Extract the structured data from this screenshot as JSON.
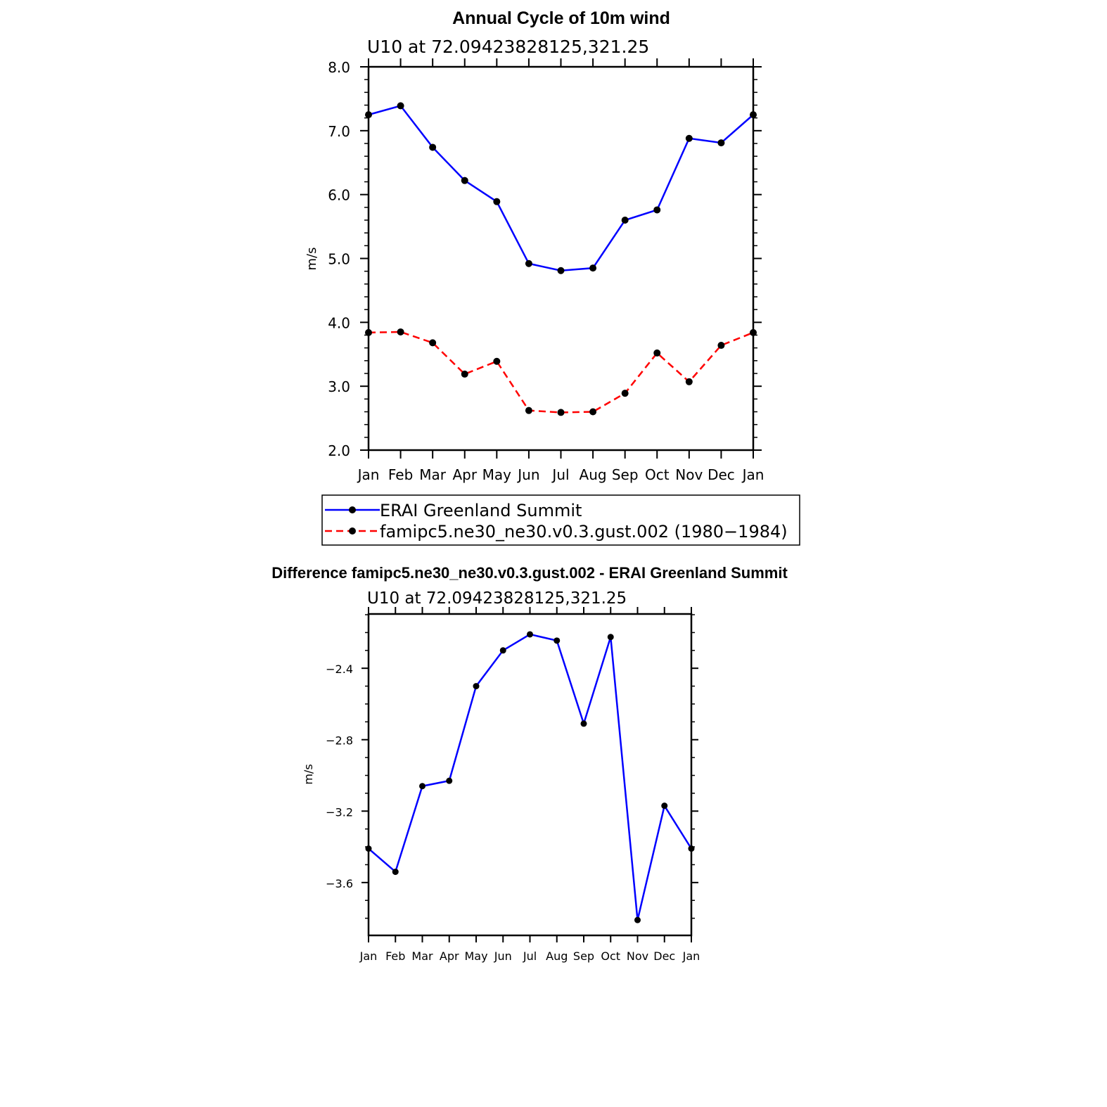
{
  "chart_data": [
    {
      "type": "line",
      "title": "Annual Cycle of 10m wind",
      "subtitle": "U10  at  72.09423828125,321.25",
      "xlabel": "",
      "ylabel": "m/s",
      "categories": [
        "Jan",
        "Feb",
        "Mar",
        "Apr",
        "May",
        "Jun",
        "Jul",
        "Aug",
        "Sep",
        "Oct",
        "Nov",
        "Dec",
        "Jan"
      ],
      "ylim": [
        2.0,
        8.0
      ],
      "yticks": [
        "2.0",
        "3.0",
        "4.0",
        "5.0",
        "6.0",
        "7.0",
        "8.0"
      ],
      "yticks_values": [
        2.0,
        3.0,
        4.0,
        5.0,
        6.0,
        7.0,
        8.0
      ],
      "grid": false,
      "legend_position": "below",
      "series": [
        {
          "name": "ERAI Greenland Summit",
          "color": "#0000ff",
          "dash": "solid",
          "values": [
            7.25,
            7.39,
            6.74,
            6.22,
            5.89,
            4.92,
            4.81,
            4.85,
            5.6,
            5.76,
            6.88,
            6.81,
            7.25
          ]
        },
        {
          "name": "famipc5.ne30_ne30.v0.3.gust.002 (1980−1984)",
          "color": "#ff0000",
          "dash": "dashed",
          "values": [
            3.84,
            3.85,
            3.68,
            3.19,
            3.39,
            2.62,
            2.59,
            2.6,
            2.89,
            3.52,
            3.07,
            3.64,
            3.84
          ]
        }
      ]
    },
    {
      "type": "line",
      "title": "Difference famipc5.ne30_ne30.v0.3.gust.002 - ERAI Greenland Summit",
      "subtitle": "U10  at  72.09423828125,321.25",
      "xlabel": "",
      "ylabel": "m/s",
      "categories": [
        "Jan",
        "Feb",
        "Mar",
        "Apr",
        "May",
        "Jun",
        "Jul",
        "Aug",
        "Sep",
        "Oct",
        "Nov",
        "Dec",
        "Jan"
      ],
      "ylim": [
        -3.896,
        -2.096
      ],
      "yticks": [
        "−2.4",
        "−2.8",
        "−3.2",
        "−3.6"
      ],
      "yticks_values": [
        -2.4,
        -2.8,
        -3.2,
        -3.6
      ],
      "grid": false,
      "series": [
        {
          "name": "Difference",
          "color": "#0000ff",
          "dash": "solid",
          "values": [
            -3.41,
            -3.54,
            -3.06,
            -3.03,
            -2.5,
            -2.3,
            -2.21,
            -2.245,
            -2.71,
            -2.225,
            -3.81,
            -3.17,
            -3.41
          ]
        }
      ]
    }
  ]
}
